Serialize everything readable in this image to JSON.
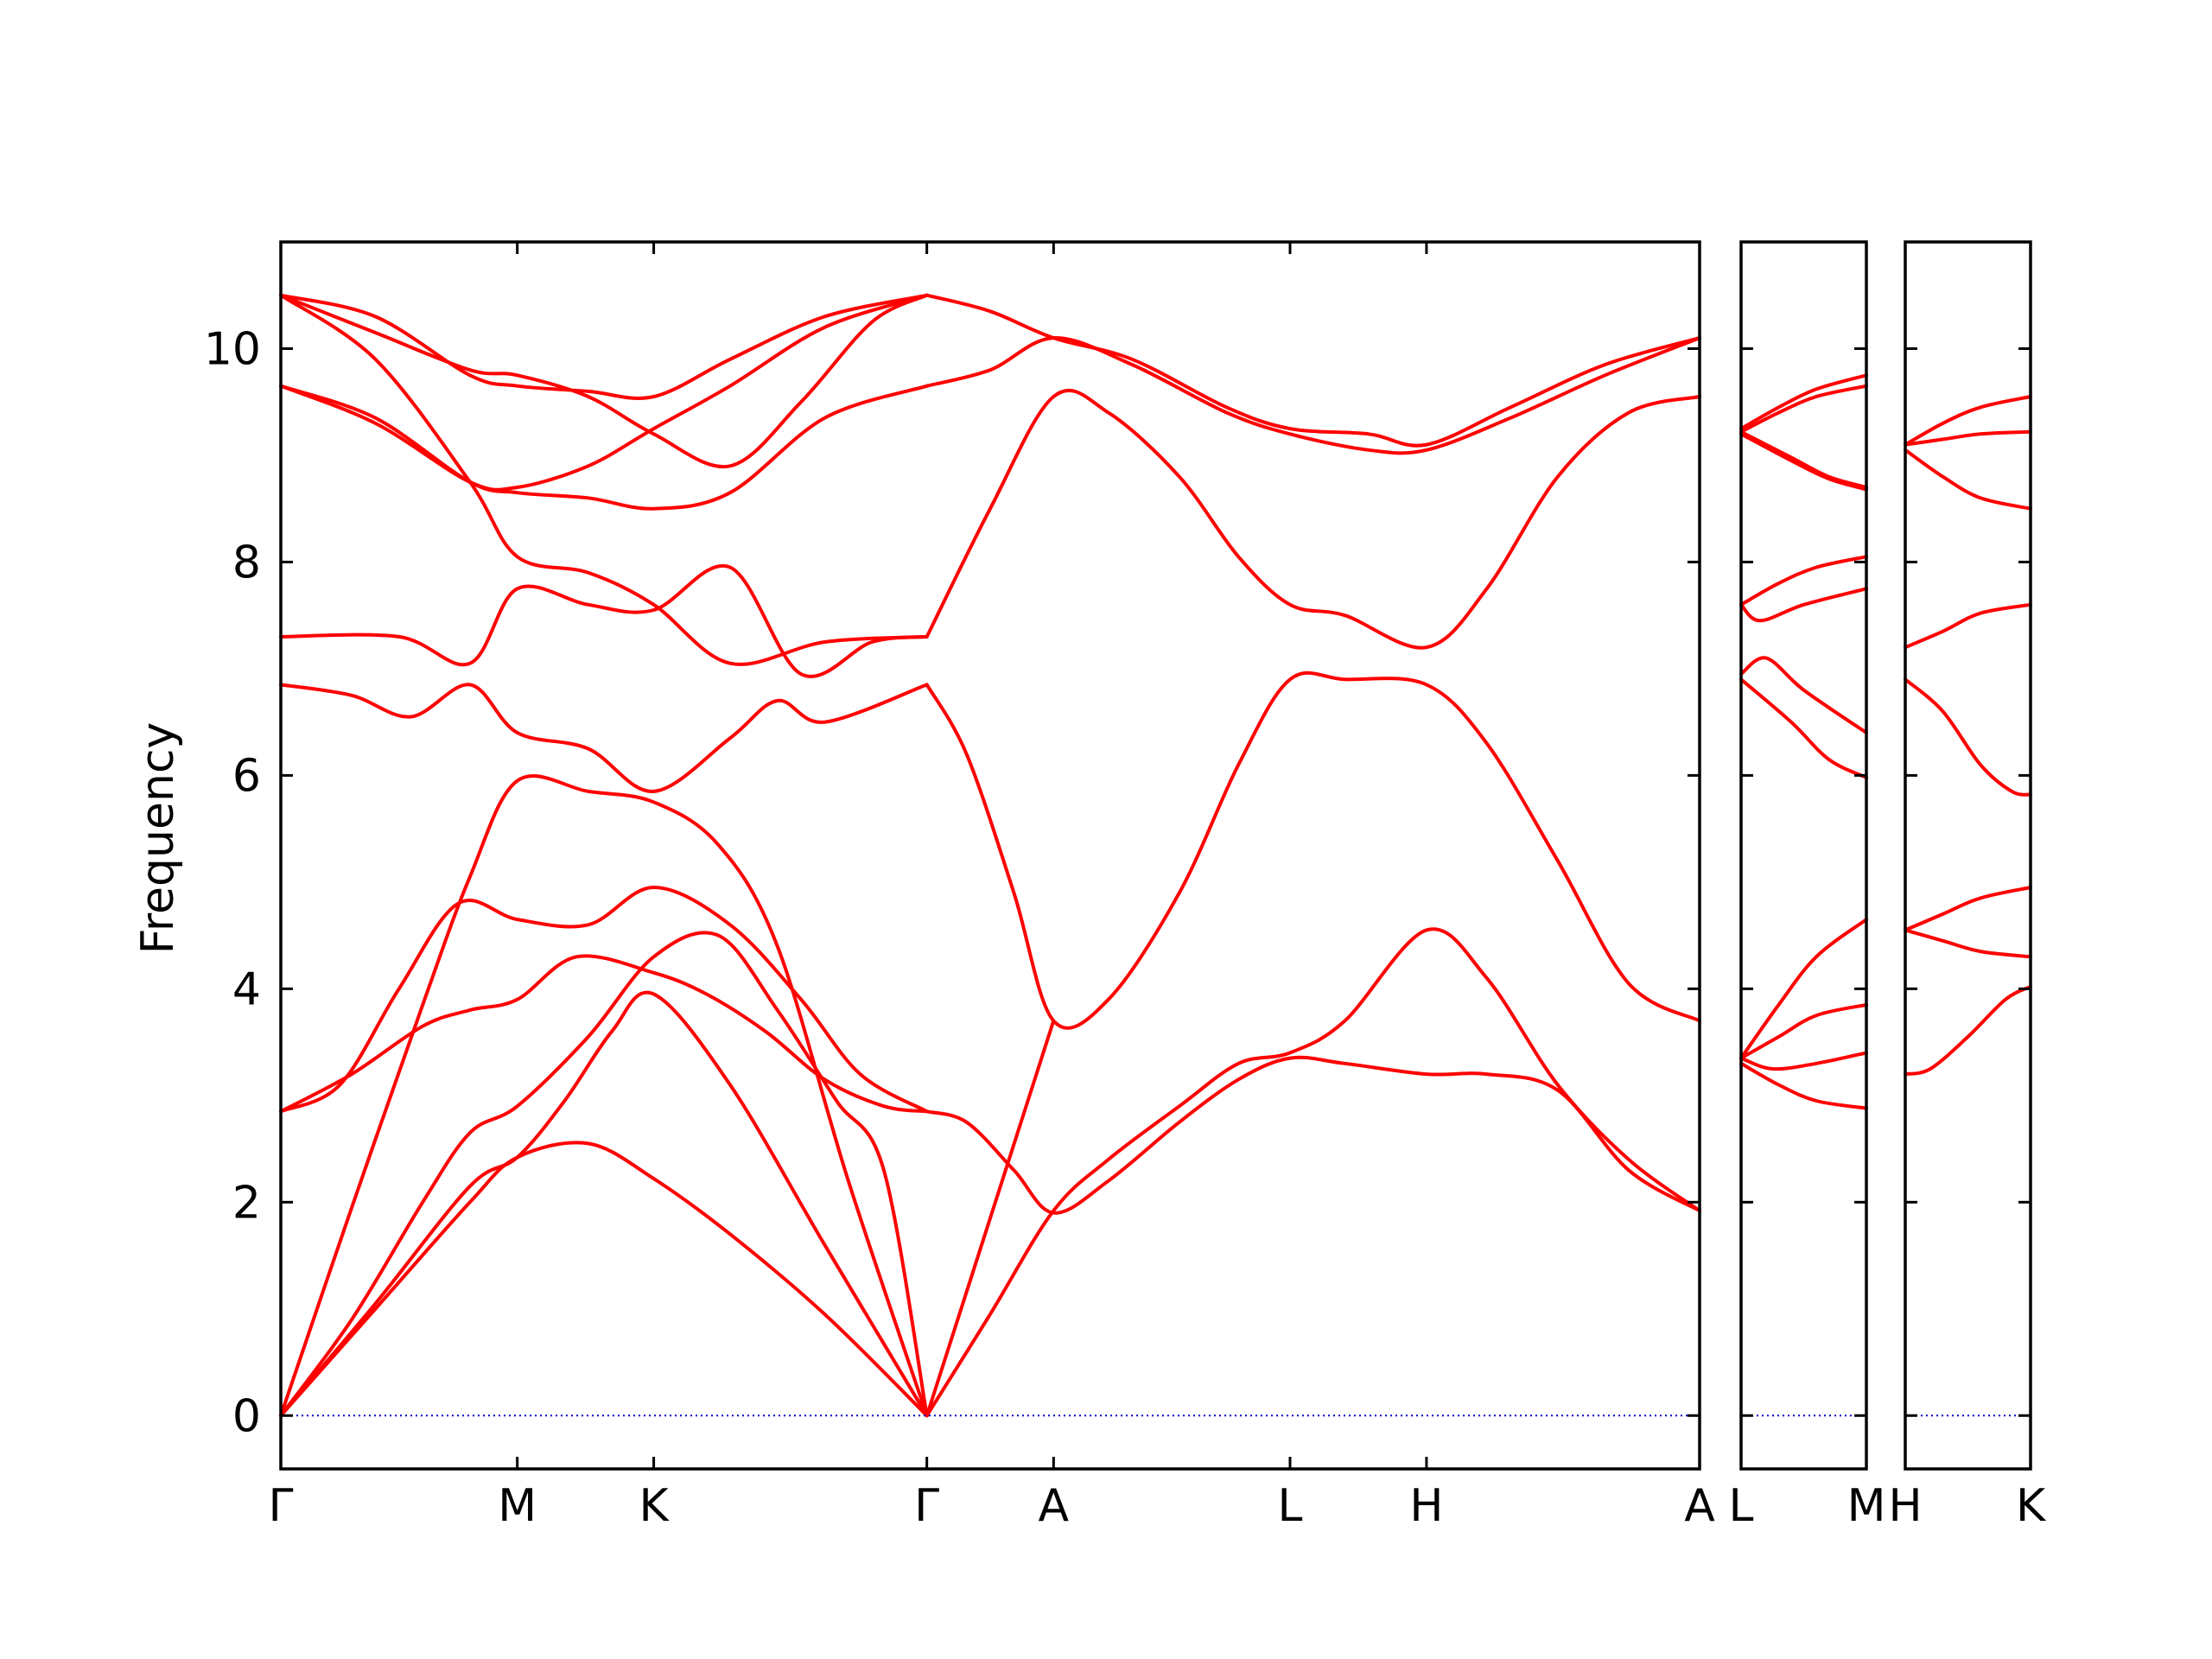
{
  "chart_data": {
    "type": "line",
    "title": "",
    "xlabel": "",
    "ylabel": "Frequency",
    "ylim": [
      -0.5,
      11
    ],
    "y_ticks": [
      0,
      2,
      4,
      6,
      8,
      10
    ],
    "colors": {
      "bands": "#ff0000",
      "zero_line": "#0000cc",
      "frame": "#000000"
    },
    "grid": false,
    "legend": "none",
    "panels": [
      {
        "x_range": [
          0,
          6
        ],
        "high_symmetry_points": [
          {
            "label": "Γ",
            "x": 0
          },
          {
            "label": "M",
            "x": 1
          },
          {
            "label": "K",
            "x": 1.577
          },
          {
            "label": "Γ",
            "x": 2.732
          },
          {
            "label": "A",
            "x": 3.268
          },
          {
            "label": "L",
            "x": 4.268
          },
          {
            "label": "H",
            "x": 4.845
          },
          {
            "label": "A",
            "x": 6
          }
        ],
        "series": [
          {
            "x": [
              0,
              0.4,
              0.8,
              1.0,
              1.3,
              1.577,
              1.9,
              2.3,
              2.732
            ],
            "y": [
              0,
              1.0,
              2.0,
              2.42,
              2.55,
              2.22,
              1.7,
              0.95,
              0
            ]
          },
          {
            "x": [
              0,
              0.4,
              0.8,
              1.0,
              1.2,
              1.4,
              1.577,
              1.9,
              2.3,
              2.732
            ],
            "y": [
              0,
              1.05,
              2.15,
              2.42,
              2.95,
              3.6,
              3.95,
              3.1,
              1.6,
              0
            ]
          },
          {
            "x": [
              0,
              0.3,
              0.6,
              0.8,
              1.0,
              1.3,
              1.577,
              1.85,
              2.1,
              2.35,
              2.55,
              2.732
            ],
            "y": [
              0,
              0.9,
              2.0,
              2.65,
              2.9,
              3.55,
              4.3,
              4.5,
              3.8,
              2.95,
              2.3,
              0
            ]
          },
          {
            "x": [
              0,
              0.3,
              0.6,
              0.8,
              1.0,
              1.25,
              1.577,
              1.8,
              2.05,
              2.3,
              2.55,
              2.732
            ],
            "y": [
              2.85,
              3.2,
              3.65,
              3.8,
              3.9,
              4.3,
              4.15,
              3.95,
              3.6,
              3.15,
              2.9,
              2.85
            ]
          },
          {
            "x": [
              0,
              0.25,
              0.5,
              0.75,
              1.0,
              1.3,
              1.577,
              1.9,
              2.2,
              2.45,
              2.732
            ],
            "y": [
              2.85,
              3.1,
              4.0,
              4.8,
              4.65,
              4.6,
              4.95,
              4.6,
              3.9,
              3.2,
              2.85
            ]
          },
          {
            "x": [
              0,
              0.3,
              0.6,
              0.8,
              1.0,
              1.3,
              1.577,
              1.85,
              2.1,
              2.4,
              2.732
            ],
            "y": [
              0,
              1.95,
              3.85,
              5.05,
              5.95,
              5.85,
              5.75,
              5.35,
              4.4,
              2.2,
              0
            ]
          },
          {
            "x": [
              0,
              0.3,
              0.55,
              0.8,
              1.0,
              1.3,
              1.577,
              1.9,
              2.1,
              2.3,
              2.732
            ],
            "y": [
              6.85,
              6.75,
              6.55,
              6.85,
              6.4,
              6.25,
              5.85,
              6.35,
              6.7,
              6.5,
              6.85
            ]
          },
          {
            "x": [
              0,
              0.5,
              0.8,
              1.0,
              1.3,
              1.577,
              1.9,
              2.2,
              2.5,
              2.732
            ],
            "y": [
              7.3,
              7.3,
              7.05,
              7.75,
              7.6,
              7.55,
              7.95,
              6.95,
              7.25,
              7.3
            ]
          },
          {
            "x": [
              0,
              0.4,
              0.8,
              1.0,
              1.3,
              1.577,
              1.9,
              2.3,
              2.732
            ],
            "y": [
              10.5,
              9.9,
              8.75,
              8.05,
              7.9,
              7.6,
              7.05,
              7.25,
              7.3
            ]
          },
          {
            "x": [
              0,
              0.4,
              0.8,
              1.0,
              1.3,
              1.577,
              1.9,
              2.3,
              2.732
            ],
            "y": [
              9.65,
              9.35,
              8.75,
              8.65,
              8.6,
              8.5,
              8.65,
              9.35,
              9.65
            ]
          },
          {
            "x": [
              0,
              0.4,
              0.8,
              1.0,
              1.3,
              1.577,
              1.9,
              2.3,
              2.732
            ],
            "y": [
              9.65,
              9.3,
              8.75,
              8.7,
              8.9,
              9.25,
              9.65,
              10.2,
              10.5
            ]
          },
          {
            "x": [
              0,
              0.4,
              0.8,
              1.0,
              1.3,
              1.577,
              1.9,
              2.3,
              2.732
            ],
            "y": [
              10.5,
              10.3,
              9.75,
              9.65,
              9.6,
              9.55,
              9.9,
              10.3,
              10.5
            ]
          },
          {
            "x": [
              0,
              0.4,
              0.8,
              1.0,
              1.3,
              1.577,
              1.9,
              2.2,
              2.5,
              2.732
            ],
            "y": [
              10.5,
              10.15,
              9.8,
              9.75,
              9.55,
              9.2,
              8.9,
              9.5,
              10.25,
              10.5
            ]
          },
          {
            "x": [
              2.732,
              2.9,
              3.1,
              3.268,
              3.5,
              3.8,
              4.05,
              4.268,
              4.5,
              4.845,
              5.1,
              5.4,
              5.7,
              6.0
            ],
            "y": [
              2.85,
              2.75,
              2.3,
              1.9,
              2.2,
              2.75,
              3.15,
              3.35,
              3.3,
              3.2,
              3.2,
              3.05,
              2.3,
              1.92
            ]
          },
          {
            "x": [
              2.732,
              3.0,
              3.268,
              3.5,
              3.8,
              4.05,
              4.268,
              4.5,
              4.845,
              5.1,
              5.4,
              5.7,
              6.0
            ],
            "y": [
              0,
              0.95,
              1.92,
              2.4,
              2.9,
              3.3,
              3.4,
              3.7,
              4.55,
              4.1,
              3.1,
              2.4,
              1.92
            ]
          },
          {
            "x": [
              2.732,
              3.0,
              3.268
            ],
            "y": [
              0,
              1.85,
              3.7
            ]
          },
          {
            "x": [
              2.732,
              2.9,
              3.1,
              3.268,
              3.5,
              3.8,
              4.05,
              4.268,
              4.5,
              4.845,
              5.1,
              5.4,
              5.7,
              6.0
            ],
            "y": [
              6.85,
              6.2,
              4.9,
              3.7,
              3.9,
              4.9,
              6.1,
              6.9,
              6.9,
              6.85,
              6.3,
              5.2,
              4.05,
              3.7
            ]
          },
          {
            "x": [
              2.732,
              3.0,
              3.268,
              3.5,
              3.8,
              4.05,
              4.268,
              4.5,
              4.845,
              5.1,
              5.4,
              5.7,
              6.0
            ],
            "y": [
              7.3,
              8.5,
              9.55,
              9.4,
              8.8,
              8.05,
              7.6,
              7.5,
              7.2,
              7.75,
              8.8,
              9.4,
              9.55
            ]
          },
          {
            "x": [
              2.732,
              3.0,
              3.268,
              3.6,
              4.0,
              4.268,
              4.6,
              4.845,
              5.2,
              5.6,
              6.0
            ],
            "y": [
              9.65,
              9.8,
              10.1,
              9.85,
              9.4,
              9.2,
              9.05,
              9.05,
              9.35,
              9.75,
              10.1
            ]
          },
          {
            "x": [
              2.732,
              3.0,
              3.268,
              3.6,
              4.0,
              4.268,
              4.6,
              4.845,
              5.2,
              5.6,
              6.0
            ],
            "y": [
              10.5,
              10.35,
              10.1,
              9.9,
              9.45,
              9.25,
              9.2,
              9.1,
              9.45,
              9.85,
              10.1
            ]
          }
        ]
      },
      {
        "x_range": [
          0,
          1
        ],
        "high_symmetry_points": [
          {
            "label": "L",
            "x": 0
          },
          {
            "label": "M",
            "x": 1
          }
        ],
        "series": [
          {
            "x": [
              0,
              0.3,
              0.6,
              1.0
            ],
            "y": [
              3.3,
              3.1,
              2.95,
              2.88
            ]
          },
          {
            "x": [
              0,
              0.25,
              0.6,
              1.0
            ],
            "y": [
              3.35,
              3.25,
              3.3,
              3.4
            ]
          },
          {
            "x": [
              0,
              0.3,
              0.6,
              1.0
            ],
            "y": [
              3.35,
              3.55,
              3.75,
              3.85
            ]
          },
          {
            "x": [
              0,
              0.3,
              0.6,
              1.0
            ],
            "y": [
              3.35,
              3.85,
              4.3,
              4.65
            ]
          },
          {
            "x": [
              0,
              0.4,
              0.7,
              1.0
            ],
            "y": [
              6.9,
              6.5,
              6.15,
              5.98
            ]
          },
          {
            "x": [
              0,
              0.2,
              0.5,
              1.0
            ],
            "y": [
              6.95,
              7.1,
              6.8,
              6.4
            ]
          },
          {
            "x": [
              0,
              0.15,
              0.5,
              1.0
            ],
            "y": [
              7.6,
              7.45,
              7.6,
              7.75
            ]
          },
          {
            "x": [
              0,
              0.3,
              0.6,
              1.0
            ],
            "y": [
              7.6,
              7.8,
              7.95,
              8.05
            ]
          },
          {
            "x": [
              0,
              0.4,
              0.7,
              1.0
            ],
            "y": [
              9.2,
              8.95,
              8.78,
              8.68
            ]
          },
          {
            "x": [
              0,
              0.4,
              0.7,
              1.0
            ],
            "y": [
              9.22,
              8.98,
              8.8,
              8.7
            ]
          },
          {
            "x": [
              0,
              0.3,
              0.6,
              1.0
            ],
            "y": [
              9.22,
              9.4,
              9.55,
              9.65
            ]
          },
          {
            "x": [
              0,
              0.3,
              0.6,
              1.0
            ],
            "y": [
              9.25,
              9.45,
              9.62,
              9.75
            ]
          }
        ]
      },
      {
        "x_range": [
          0,
          1
        ],
        "high_symmetry_points": [
          {
            "label": "H",
            "x": 0
          },
          {
            "label": "K",
            "x": 1
          }
        ],
        "series": [
          {
            "x": [
              0,
              0.2,
              0.5,
              0.8,
              1.0
            ],
            "y": [
              3.2,
              3.25,
              3.55,
              3.9,
              4.02
            ]
          },
          {
            "x": [
              0,
              0.3,
              0.6,
              1.0
            ],
            "y": [
              4.55,
              4.45,
              4.35,
              4.3
            ]
          },
          {
            "x": [
              0,
              0.3,
              0.6,
              1.0
            ],
            "y": [
              4.55,
              4.7,
              4.85,
              4.95
            ]
          },
          {
            "x": [
              0,
              0.3,
              0.6,
              0.85,
              1.0
            ],
            "y": [
              6.9,
              6.6,
              6.1,
              5.85,
              5.82
            ]
          },
          {
            "x": [
              0,
              0.3,
              0.6,
              1.0
            ],
            "y": [
              7.2,
              7.35,
              7.52,
              7.6
            ]
          },
          {
            "x": [
              0,
              0.3,
              0.6,
              1.0
            ],
            "y": [
              9.05,
              8.8,
              8.6,
              8.5
            ]
          },
          {
            "x": [
              0,
              0.3,
              0.6,
              1.0
            ],
            "y": [
              9.1,
              9.15,
              9.2,
              9.22
            ]
          },
          {
            "x": [
              0,
              0.3,
              0.6,
              1.0
            ],
            "y": [
              9.1,
              9.3,
              9.45,
              9.55
            ]
          }
        ]
      }
    ]
  }
}
